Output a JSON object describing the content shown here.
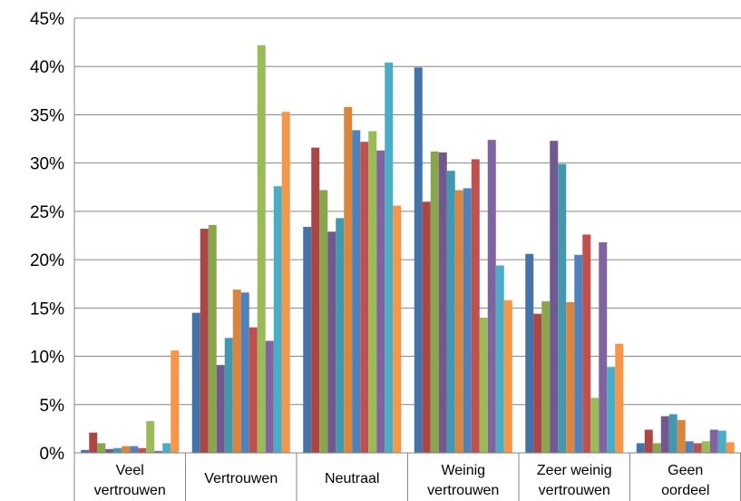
{
  "chart_data": {
    "type": "bar",
    "title": "",
    "xlabel": "",
    "ylabel": "",
    "ylim": [
      0,
      45
    ],
    "y_ticks": [
      "0%",
      "5%",
      "10%",
      "15%",
      "20%",
      "25%",
      "30%",
      "35%",
      "40%",
      "45%"
    ],
    "grid": true,
    "legend": "none",
    "categories": [
      [
        "Veel",
        "vertrouwen"
      ],
      [
        "Vertrouwen"
      ],
      [
        "Neutraal"
      ],
      [
        "Weinig",
        "vertrouwen"
      ],
      [
        "Zeer weinig",
        "vertrouwen"
      ],
      [
        "Geen",
        "oordeel"
      ]
    ],
    "colors": [
      "#4572a7",
      "#aa4643",
      "#89a54e",
      "#71588f",
      "#4198af",
      "#db843d",
      "#4f81bd",
      "#c0504d",
      "#9bbb59",
      "#8064a2",
      "#4bacc6",
      "#f79646"
    ],
    "series": [
      {
        "values": [
          0.3,
          14.5,
          23.4,
          39.9,
          20.6,
          1.0
        ]
      },
      {
        "values": [
          2.1,
          23.2,
          31.6,
          26.0,
          14.4,
          2.4
        ]
      },
      {
        "values": [
          1.0,
          23.6,
          27.2,
          31.2,
          15.7,
          1.0
        ]
      },
      {
        "values": [
          0.4,
          9.1,
          22.9,
          31.1,
          32.3,
          3.8
        ]
      },
      {
        "values": [
          0.5,
          11.9,
          24.3,
          29.2,
          29.9,
          4.0
        ]
      },
      {
        "values": [
          0.7,
          16.9,
          35.8,
          27.2,
          15.6,
          3.4
        ]
      },
      {
        "values": [
          0.7,
          16.6,
          33.4,
          27.4,
          20.5,
          1.2
        ]
      },
      {
        "values": [
          0.5,
          13.0,
          32.2,
          30.4,
          22.6,
          1.0
        ]
      },
      {
        "values": [
          3.3,
          42.2,
          33.3,
          14.0,
          5.7,
          1.2
        ]
      },
      {
        "values": [
          0.2,
          11.6,
          31.3,
          32.4,
          21.8,
          2.4
        ]
      },
      {
        "values": [
          1.0,
          27.6,
          40.4,
          19.4,
          8.9,
          2.3
        ]
      },
      {
        "values": [
          10.6,
          35.3,
          25.6,
          15.8,
          11.3,
          1.1
        ]
      }
    ]
  }
}
